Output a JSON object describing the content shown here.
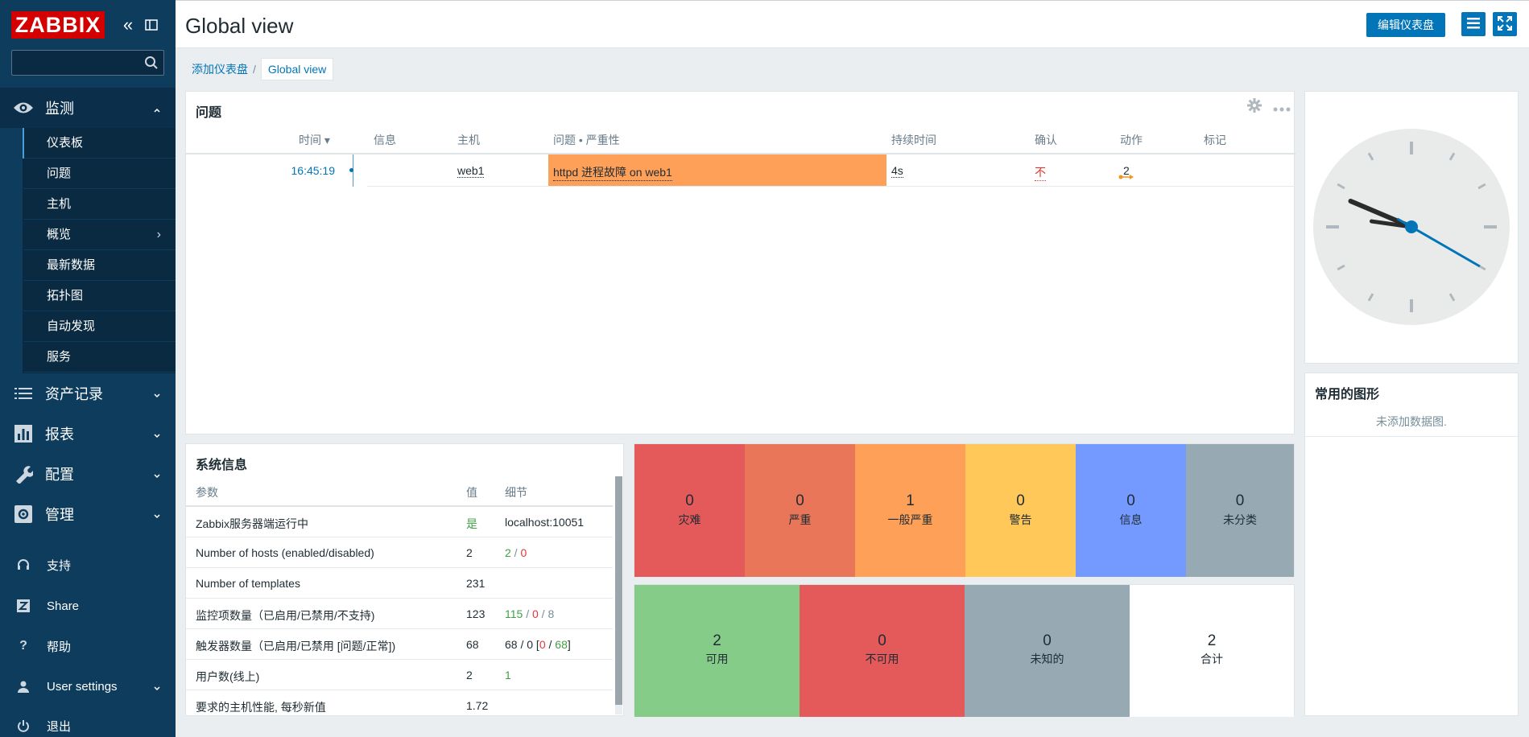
{
  "sidebar": {
    "logo_text": "ZABBIX",
    "search_placeholder": "",
    "sections": {
      "monitoring": "监测",
      "inventory": "资产记录",
      "reports": "报表",
      "configuration": "配置",
      "administration": "管理"
    },
    "submenu": [
      {
        "label": "仪表板",
        "active": true
      },
      {
        "label": "问题"
      },
      {
        "label": "主机"
      },
      {
        "label": "概览",
        "has_arrow": true
      },
      {
        "label": "最新数据"
      },
      {
        "label": "拓扑图"
      },
      {
        "label": "自动发现"
      },
      {
        "label": "服务"
      }
    ],
    "bottom": {
      "support": "支持",
      "share": "Share",
      "help": "帮助",
      "user_settings": "User settings",
      "logout": "退出"
    }
  },
  "header": {
    "title": "Global view",
    "edit_button": "编辑仪表盘"
  },
  "breadcrumb": {
    "parent": "添加仪表盘",
    "separator": "/",
    "current": "Global view"
  },
  "problems_widget": {
    "title": "问题",
    "columns": {
      "time": "时间 ▾",
      "info": "信息",
      "host": "主机",
      "problem": "问题 • 严重性",
      "duration": "持续时间",
      "ack": "确认",
      "actions": "动作",
      "tags": "标记"
    },
    "rows": [
      {
        "time": "16:45:19",
        "host": "web1",
        "problem": "httpd 进程故障 on web1",
        "duration": "4s",
        "ack": "不",
        "actions": "2",
        "severity_color": "#ffa059"
      }
    ]
  },
  "clock_widget": {
    "hour": 9,
    "minute": 46,
    "second": 20
  },
  "graphs_widget": {
    "title": "常用的图形",
    "empty_text": "未添加数据图."
  },
  "sysinfo_widget": {
    "title": "系统信息",
    "columns": {
      "param": "参数",
      "value": "值",
      "details": "细节"
    },
    "rows": [
      {
        "param": "Zabbix服务器端运行中",
        "value": "是",
        "details": [
          {
            "t": "localhost:10051",
            "c": ""
          }
        ]
      },
      {
        "param": "Number of hosts (enabled/disabled)",
        "value": "2",
        "details": [
          {
            "t": "2",
            "c": "c-green"
          },
          {
            "t": " / ",
            "c": "c-gray"
          },
          {
            "t": "0",
            "c": "c-red"
          }
        ]
      },
      {
        "param": "Number of templates",
        "value": "231",
        "details": []
      },
      {
        "param": "监控项数量（已启用/已禁用/不支持)",
        "value": "123",
        "details": [
          {
            "t": "115",
            "c": "c-green"
          },
          {
            "t": " / ",
            "c": "c-gray"
          },
          {
            "t": "0",
            "c": "c-red"
          },
          {
            "t": " / ",
            "c": "c-gray"
          },
          {
            "t": "8",
            "c": "c-gray"
          }
        ]
      },
      {
        "param": "触发器数量（已启用/已禁用 [问题/正常])",
        "value": "68",
        "details": [
          {
            "t": "68 / 0 [",
            "c": ""
          },
          {
            "t": "0",
            "c": "c-red"
          },
          {
            "t": " / ",
            "c": ""
          },
          {
            "t": "68",
            "c": "c-green"
          },
          {
            "t": "]",
            "c": ""
          }
        ]
      },
      {
        "param": "用户数(线上)",
        "value": "2",
        "details": [
          {
            "t": "1",
            "c": "c-green"
          }
        ]
      },
      {
        "param": "要求的主机性能, 每秒新值",
        "value": "1.72",
        "details": []
      }
    ]
  },
  "severity_widget": {
    "tiles": [
      {
        "count": "0",
        "label": "灾难",
        "color": "#e45959"
      },
      {
        "count": "0",
        "label": "严重",
        "color": "#e97659"
      },
      {
        "count": "1",
        "label": "一般严重",
        "color": "#ffa059"
      },
      {
        "count": "0",
        "label": "警告",
        "color": "#ffc859"
      },
      {
        "count": "0",
        "label": "信息",
        "color": "#7499ff"
      },
      {
        "count": "0",
        "label": "未分类",
        "color": "#97aab3"
      }
    ]
  },
  "availability_widget": {
    "tiles": [
      {
        "count": "2",
        "label": "可用",
        "color": "#86cc89"
      },
      {
        "count": "0",
        "label": "不可用",
        "color": "#e45959"
      },
      {
        "count": "0",
        "label": "未知的",
        "color": "#97aab3"
      },
      {
        "count": "2",
        "label": "合计",
        "color": "#ffffff"
      }
    ]
  }
}
